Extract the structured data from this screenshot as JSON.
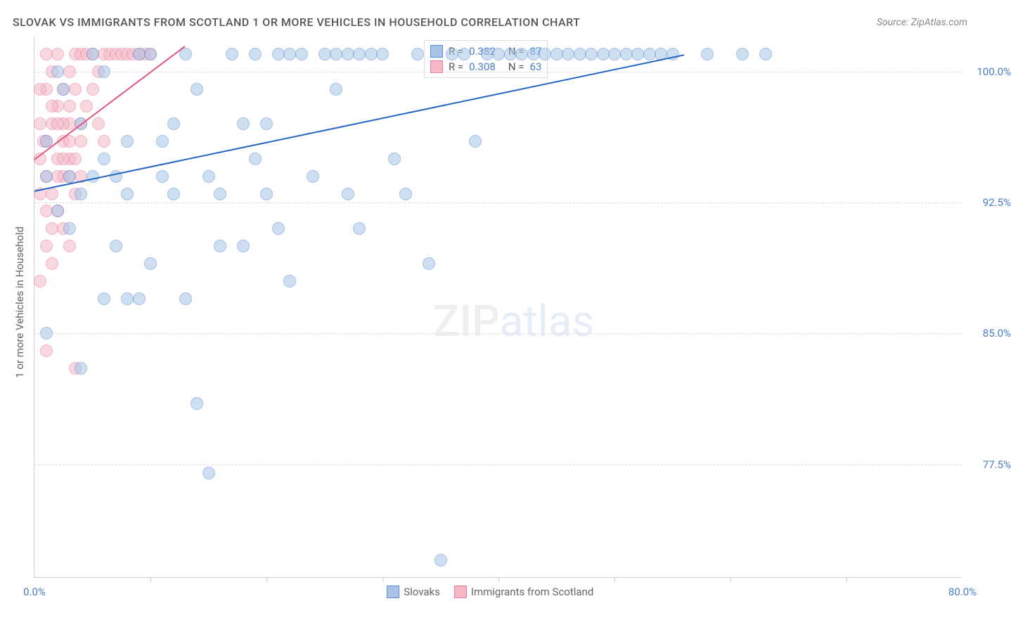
{
  "title": "SLOVAK VS IMMIGRANTS FROM SCOTLAND 1 OR MORE VEHICLES IN HOUSEHOLD CORRELATION CHART",
  "source": "Source: ZipAtlas.com",
  "y_axis_title": "1 or more Vehicles in Household",
  "watermark_a": "ZIP",
  "watermark_b": "atlas",
  "chart": {
    "type": "scatter",
    "xlim": [
      0,
      80
    ],
    "ylim": [
      71,
      102
    ],
    "x_ticks": [
      0,
      10,
      20,
      30,
      40,
      50,
      60,
      70,
      80
    ],
    "x_tick_labels": {
      "0": "0.0%",
      "80": "80.0%"
    },
    "y_gridlines": [
      77.5,
      85.0,
      92.5,
      100.0
    ],
    "y_tick_labels": [
      "77.5%",
      "85.0%",
      "92.5%",
      "100.0%"
    ],
    "background_color": "#ffffff",
    "grid_color": "#dddddd",
    "axis_label_color": "#4a7ec9"
  },
  "series": [
    {
      "name": "Slovaks",
      "label": "Slovaks",
      "fill_color": "#a8c5e8",
      "stroke_color": "#5b8dd6",
      "line_color": "#2566c4",
      "R_label": "R =",
      "R": "0.382",
      "N_label": "N =",
      "N": "87",
      "trend": {
        "x1": 0,
        "y1": 93.2,
        "x2": 56,
        "y2": 101
      },
      "points": [
        [
          1,
          94
        ],
        [
          2,
          100
        ],
        [
          3,
          94
        ],
        [
          4,
          93
        ],
        [
          5,
          94
        ],
        [
          6,
          100
        ],
        [
          3,
          91
        ],
        [
          2,
          92
        ],
        [
          1,
          96
        ],
        [
          4,
          97
        ],
        [
          5,
          101
        ],
        [
          6,
          95
        ],
        [
          7,
          94
        ],
        [
          8,
          96
        ],
        [
          9,
          101
        ],
        [
          8,
          93
        ],
        [
          7,
          90
        ],
        [
          6,
          87
        ],
        [
          10,
          101
        ],
        [
          11,
          94
        ],
        [
          12,
          97
        ],
        [
          13,
          101
        ],
        [
          14,
          99
        ],
        [
          15,
          94
        ],
        [
          16,
          90
        ],
        [
          12,
          93
        ],
        [
          11,
          96
        ],
        [
          10,
          89
        ],
        [
          9,
          87
        ],
        [
          8,
          87
        ],
        [
          13,
          87
        ],
        [
          14,
          81
        ],
        [
          15,
          77
        ],
        [
          16,
          93
        ],
        [
          17,
          101
        ],
        [
          18,
          97
        ],
        [
          19,
          101
        ],
        [
          20,
          93
        ],
        [
          21,
          101
        ],
        [
          22,
          101
        ],
        [
          23,
          101
        ],
        [
          24,
          94
        ],
        [
          21,
          91
        ],
        [
          22,
          88
        ],
        [
          18,
          90
        ],
        [
          19,
          95
        ],
        [
          20,
          97
        ],
        [
          25,
          101
        ],
        [
          26,
          99
        ],
        [
          27,
          101
        ],
        [
          28,
          101
        ],
        [
          29,
          101
        ],
        [
          30,
          101
        ],
        [
          31,
          95
        ],
        [
          32,
          93
        ],
        [
          28,
          91
        ],
        [
          26,
          101
        ],
        [
          27,
          93
        ],
        [
          33,
          101
        ],
        [
          34,
          89
        ],
        [
          35,
          72
        ],
        [
          36,
          101
        ],
        [
          37,
          101
        ],
        [
          38,
          96
        ],
        [
          39,
          101
        ],
        [
          40,
          101
        ],
        [
          41,
          101
        ],
        [
          42,
          101
        ],
        [
          43,
          101
        ],
        [
          44,
          101
        ],
        [
          45,
          101
        ],
        [
          46,
          101
        ],
        [
          47,
          101
        ],
        [
          48,
          101
        ],
        [
          49,
          101
        ],
        [
          50,
          101
        ],
        [
          51,
          101
        ],
        [
          52,
          101
        ],
        [
          53,
          101
        ],
        [
          54,
          101
        ],
        [
          55,
          101
        ],
        [
          58,
          101
        ],
        [
          61,
          101
        ],
        [
          63,
          101
        ],
        [
          1,
          85
        ],
        [
          4,
          83
        ],
        [
          2.5,
          99
        ]
      ]
    },
    {
      "name": "Immigrants from Scotland",
      "label": "Immigrants from Scotland",
      "fill_color": "#f4b8c6",
      "stroke_color": "#e87a9a",
      "line_color": "#e15580",
      "R_label": "R =",
      "R": "0.308",
      "N_label": "N =",
      "N": "63",
      "trend": {
        "x1": 0,
        "y1": 95,
        "x2": 13,
        "y2": 101.5
      },
      "points": [
        [
          0.5,
          95
        ],
        [
          1,
          96
        ],
        [
          1.5,
          97
        ],
        [
          2,
          98
        ],
        [
          2.5,
          99
        ],
        [
          3,
          100
        ],
        [
          3.5,
          101
        ],
        [
          4,
          101
        ],
        [
          1,
          94
        ],
        [
          1.5,
          93
        ],
        [
          2,
          95
        ],
        [
          2.5,
          96
        ],
        [
          3,
          97
        ],
        [
          0.5,
          97
        ],
        [
          1,
          99
        ],
        [
          1.5,
          100
        ],
        [
          2,
          101
        ],
        [
          2.5,
          94
        ],
        [
          3,
          95
        ],
        [
          0.5,
          93
        ],
        [
          1,
          92
        ],
        [
          1.5,
          91
        ],
        [
          2,
          94
        ],
        [
          2.5,
          97
        ],
        [
          3,
          98
        ],
        [
          3.5,
          99
        ],
        [
          4,
          97
        ],
        [
          4.5,
          101
        ],
        [
          5,
          101
        ],
        [
          5.5,
          100
        ],
        [
          6,
          101
        ],
        [
          6.5,
          101
        ],
        [
          7,
          101
        ],
        [
          7.5,
          101
        ],
        [
          8,
          101
        ],
        [
          8.5,
          101
        ],
        [
          9,
          101
        ],
        [
          9.5,
          101
        ],
        [
          10,
          101
        ],
        [
          3,
          96
        ],
        [
          3.5,
          95
        ],
        [
          4,
          94
        ],
        [
          2,
          92
        ],
        [
          2.5,
          91
        ],
        [
          3,
          90
        ],
        [
          1,
          90
        ],
        [
          1.5,
          89
        ],
        [
          0.5,
          88
        ],
        [
          1,
          84
        ],
        [
          3.5,
          83
        ],
        [
          0.5,
          99
        ],
        [
          1,
          101
        ],
        [
          1.5,
          98
        ],
        [
          2,
          97
        ],
        [
          2.5,
          95
        ],
        [
          3,
          94
        ],
        [
          3.5,
          93
        ],
        [
          4,
          96
        ],
        [
          4.5,
          98
        ],
        [
          5,
          99
        ],
        [
          5.5,
          97
        ],
        [
          6,
          96
        ],
        [
          0.8,
          96
        ]
      ]
    }
  ]
}
